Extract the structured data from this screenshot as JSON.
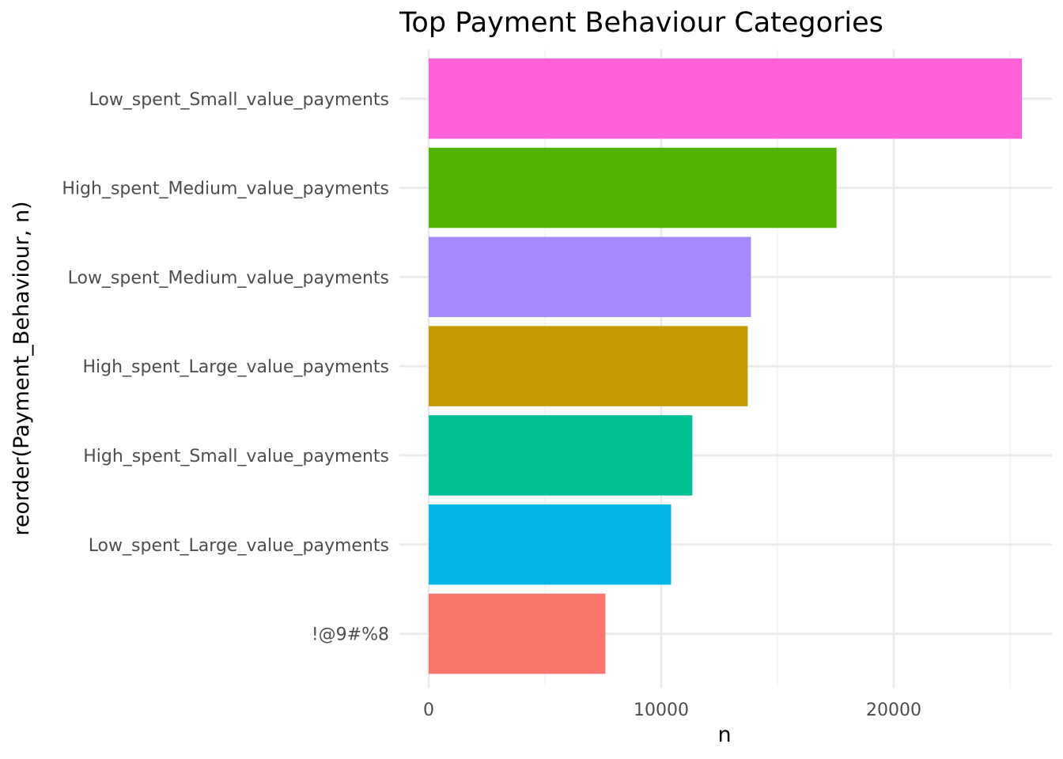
{
  "chart_data": {
    "type": "bar",
    "orientation": "horizontal",
    "title": "Top Payment Behaviour Categories",
    "xlabel": "n",
    "ylabel": "reorder(Payment_Behaviour, n)",
    "categories": [
      "Low_spent_Small_value_payments",
      "High_spent_Medium_value_payments",
      "Low_spent_Medium_value_payments",
      "High_spent_Large_value_payments",
      "High_spent_Small_value_payments",
      "Low_spent_Large_value_payments",
      "!@9#%8"
    ],
    "values": [
      25513,
      17540,
      13861,
      13721,
      11340,
      10425,
      7600
    ],
    "colors": [
      "#ff61d8",
      "#53b400",
      "#a58aff",
      "#c49a00",
      "#00c094",
      "#00b6eb",
      "#f8766d"
    ],
    "xlim": [
      0,
      26000
    ],
    "xticks": [
      0,
      10000,
      20000
    ],
    "xtick_labels": [
      "0",
      "10000",
      "20000"
    ],
    "grid": true,
    "legend": "none"
  }
}
